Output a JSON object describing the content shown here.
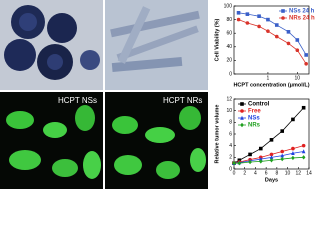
{
  "panels": [
    {
      "label": "HCPT NSs"
    },
    {
      "label": "HCPT NRs"
    }
  ],
  "chart_data": [
    {
      "type": "line",
      "xlabel": "HCPT concentration (μmol/L)",
      "ylabel": "Cell Viability (%)",
      "x": [
        0.1,
        0.2,
        0.5,
        1,
        2,
        5,
        10,
        20
      ],
      "xlog": true,
      "xlim": [
        0.07,
        25
      ],
      "xticks": [
        1,
        10
      ],
      "ylim": [
        0,
        100
      ],
      "yticks": [
        0,
        20,
        40,
        60,
        80,
        100
      ],
      "legend": "upper right",
      "series": [
        {
          "name": "NSs 24 h",
          "color": "#3a5fc8",
          "marker": "square",
          "values": [
            90,
            88,
            85,
            80,
            72,
            62,
            50,
            28
          ]
        },
        {
          "name": "NRs 24 h",
          "color": "#d9342b",
          "marker": "circle",
          "values": [
            80,
            75,
            70,
            63,
            55,
            45,
            35,
            15
          ]
        }
      ]
    },
    {
      "type": "line",
      "xlabel": "Days",
      "ylabel": "Relative tumor volume",
      "x": [
        0,
        1,
        3,
        5,
        7,
        9,
        11,
        13
      ],
      "xlog": false,
      "xlim": [
        0,
        14
      ],
      "xticks": [
        0,
        2,
        4,
        6,
        8,
        10,
        12,
        14
      ],
      "ylim": [
        0,
        12
      ],
      "yticks": [
        0,
        2,
        4,
        6,
        8,
        10,
        12
      ],
      "legend": "upper left",
      "series": [
        {
          "name": "Control",
          "color": "#000000",
          "marker": "square",
          "values": [
            1,
            1.5,
            2.5,
            3.5,
            5,
            6.5,
            8.5,
            10.5
          ]
        },
        {
          "name": "Free",
          "color": "#e02020",
          "marker": "circle",
          "values": [
            1,
            1.2,
            1.6,
            2,
            2.5,
            3,
            3.5,
            4
          ]
        },
        {
          "name": "NSs",
          "color": "#2040e0",
          "marker": "triangle",
          "values": [
            1,
            1.1,
            1.4,
            1.7,
            2,
            2.3,
            2.7,
            3
          ]
        },
        {
          "name": "NRs",
          "color": "#20a020",
          "marker": "diamond",
          "values": [
            1,
            1,
            1.2,
            1.3,
            1.5,
            1.7,
            1.9,
            2
          ]
        }
      ]
    }
  ]
}
